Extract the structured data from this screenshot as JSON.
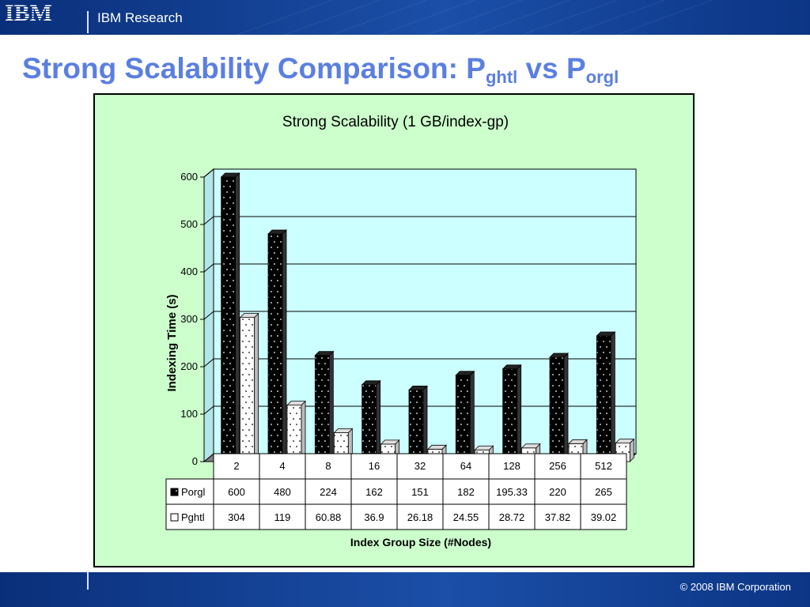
{
  "header": {
    "brand_label": "IBM Research",
    "logo_text": "IBM"
  },
  "slide": {
    "title_prefix": "Strong Scalability Comparison: P",
    "title_sub1": "ghtl",
    "title_mid": " vs P",
    "title_sub2": "orgl"
  },
  "footer": {
    "copyright": "© 2008 IBM Corporation"
  },
  "colors": {
    "plot_bg": "#ccffff",
    "chart_bg": "#ccffcc",
    "porgl": "#000000",
    "pghtl": "#ffffff",
    "title": "#5b7fe0"
  },
  "chart_data": {
    "type": "bar",
    "title": "Strong Scalability (1 GB/index-gp)",
    "xlabel": "Index Group Size (#Nodes)",
    "ylabel": "Indexing Time (s)",
    "ylim": [
      0,
      600
    ],
    "yticks": [
      0,
      100,
      200,
      300,
      400,
      500,
      600
    ],
    "grid": true,
    "legend": "data-table",
    "categories": [
      "2",
      "4",
      "8",
      "16",
      "32",
      "64",
      "128",
      "256",
      "512"
    ],
    "series": [
      {
        "name": "Porgl",
        "values": [
          600,
          480,
          224,
          162,
          151,
          182,
          195.33,
          220,
          265
        ],
        "labels": [
          "600",
          "480",
          "224",
          "162",
          "151",
          "182",
          "195.33",
          "220",
          "265"
        ]
      },
      {
        "name": "Pghtl",
        "values": [
          304,
          119,
          60.88,
          36.9,
          26.18,
          24.55,
          28.72,
          37.82,
          39.02
        ],
        "labels": [
          "304",
          "119",
          "60.88",
          "36.9",
          "26.18",
          "24.55",
          "28.72",
          "37.82",
          "39.02"
        ]
      }
    ]
  }
}
